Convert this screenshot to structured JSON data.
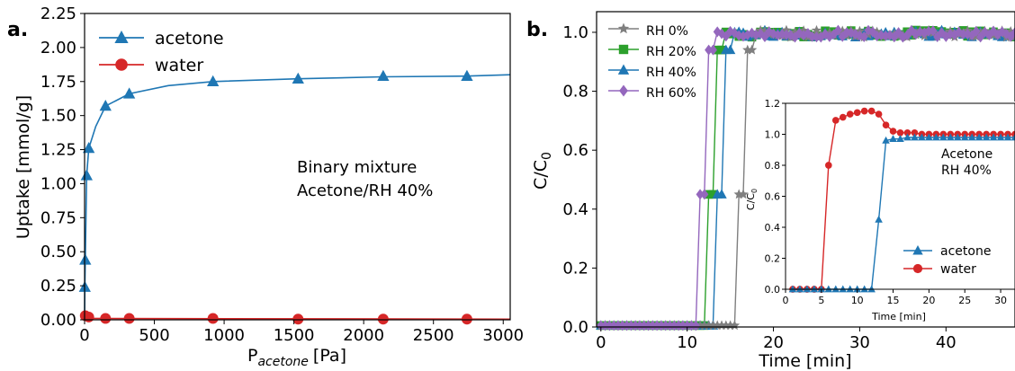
{
  "chart_data": [
    {
      "type": "line",
      "panel_label": "a.",
      "xlabel_main": "P",
      "xlabel_sub": "acetone",
      "xlabel_unit": "[Pa]",
      "ylabel": "Uptake [mmol/g]",
      "xlim": [
        0,
        3050
      ],
      "ylim": [
        0,
        2.25
      ],
      "xticks": [
        0,
        500,
        1000,
        1500,
        2000,
        2500,
        3000
      ],
      "yticks": [
        0.0,
        0.25,
        0.5,
        0.75,
        1.0,
        1.25,
        1.5,
        1.75,
        2.0,
        2.25
      ],
      "annotation": [
        "Binary mixture",
        "Acetone/RH 40%"
      ],
      "legend_position": "top-left",
      "grid": false,
      "series": [
        {
          "name": "acetone",
          "color": "#1f77b4",
          "marker": "triangle",
          "points": [
            [
              2,
              0.24
            ],
            [
              5,
              0.44
            ],
            [
              15,
              1.06
            ],
            [
              30,
              1.26
            ],
            [
              150,
              1.57
            ],
            [
              320,
              1.66
            ],
            [
              920,
              1.75
            ],
            [
              1530,
              1.77
            ],
            [
              2140,
              1.79
            ],
            [
              2740,
              1.79
            ]
          ],
          "fit_curve": [
            [
              0,
              0
            ],
            [
              2,
              0.24
            ],
            [
              5,
              0.44
            ],
            [
              15,
              1.06
            ],
            [
              30,
              1.26
            ],
            [
              80,
              1.42
            ],
            [
              150,
              1.57
            ],
            [
              320,
              1.66
            ],
            [
              600,
              1.72
            ],
            [
              920,
              1.75
            ],
            [
              1530,
              1.77
            ],
            [
              2140,
              1.785
            ],
            [
              2740,
              1.79
            ],
            [
              3050,
              1.8
            ]
          ]
        },
        {
          "name": "water",
          "color": "#d62728",
          "marker": "circle",
          "points": [
            [
              5,
              0.03
            ],
            [
              30,
              0.02
            ],
            [
              150,
              0.01
            ],
            [
              320,
              0.01
            ],
            [
              920,
              0.01
            ],
            [
              1530,
              0.005
            ],
            [
              2140,
              0.005
            ],
            [
              2740,
              0.005
            ]
          ]
        }
      ]
    },
    {
      "type": "line",
      "panel_label": "b.",
      "xlabel": "Time [min]",
      "ylabel_main": "C/C",
      "ylabel_sub": "0",
      "xlim": [
        -0.5,
        48
      ],
      "ylim": [
        0,
        1.07
      ],
      "xticks": [
        0,
        10,
        20,
        30,
        40
      ],
      "yticks": [
        "0.0",
        "0.2",
        "0.4",
        "0.6",
        "0.8",
        "1.0"
      ],
      "legend_position": "top-left",
      "grid": false,
      "series": [
        {
          "name": "RH 0%",
          "color": "#7f7f7f",
          "marker": "star",
          "breakthrough": 16.5,
          "jitter_seed": 1
        },
        {
          "name": "RH 20%",
          "color": "#2ca02c",
          "marker": "square",
          "breakthrough": 13.0,
          "jitter_seed": 2
        },
        {
          "name": "RH 40%",
          "color": "#1f77b4",
          "marker": "triangle",
          "breakthrough": 14.0,
          "jitter_seed": 3
        },
        {
          "name": "RH 60%",
          "color": "#9467bd",
          "marker": "diamond",
          "breakthrough": 12.0,
          "jitter_seed": 4
        }
      ],
      "inset": {
        "xlabel": "Time [min]",
        "ylabel_main": "C/C",
        "ylabel_sub": "0",
        "annotation": [
          "Acetone",
          "RH 40%"
        ],
        "xlim": [
          0,
          32
        ],
        "ylim": [
          0,
          1.2
        ],
        "xticks": [
          0,
          5,
          10,
          15,
          20,
          25,
          30
        ],
        "yticks": [
          "0.0",
          "0.2",
          "0.4",
          "0.6",
          "0.8",
          "1.0",
          "1.2"
        ],
        "legend_position": "bottom-right",
        "series": [
          {
            "name": "acetone",
            "color": "#1f77b4",
            "marker": "triangle",
            "points": [
              [
                1,
                0
              ],
              [
                2,
                0
              ],
              [
                3,
                0
              ],
              [
                4,
                0
              ],
              [
                5,
                0
              ],
              [
                6,
                0
              ],
              [
                7,
                0
              ],
              [
                8,
                0
              ],
              [
                9,
                0
              ],
              [
                10,
                0
              ],
              [
                11,
                0
              ],
              [
                12,
                0
              ],
              [
                13,
                0.45
              ],
              [
                14,
                0.96
              ],
              [
                15,
                0.97
              ],
              [
                16,
                0.97
              ],
              [
                17,
                0.98
              ],
              [
                18,
                0.98
              ],
              [
                19,
                0.98
              ],
              [
                20,
                0.98
              ],
              [
                21,
                0.98
              ],
              [
                22,
                0.98
              ],
              [
                23,
                0.98
              ],
              [
                24,
                0.98
              ],
              [
                25,
                0.98
              ],
              [
                26,
                0.98
              ],
              [
                27,
                0.98
              ],
              [
                28,
                0.98
              ],
              [
                29,
                0.98
              ],
              [
                30,
                0.98
              ],
              [
                31,
                0.98
              ],
              [
                32,
                0.98
              ]
            ]
          },
          {
            "name": "water",
            "color": "#d62728",
            "marker": "circle",
            "points": [
              [
                1,
                0
              ],
              [
                2,
                0
              ],
              [
                3,
                0
              ],
              [
                4,
                0
              ],
              [
                5,
                0
              ],
              [
                6,
                0.8
              ],
              [
                7,
                1.09
              ],
              [
                8,
                1.11
              ],
              [
                9,
                1.13
              ],
              [
                10,
                1.14
              ],
              [
                11,
                1.15
              ],
              [
                12,
                1.15
              ],
              [
                13,
                1.13
              ],
              [
                14,
                1.06
              ],
              [
                15,
                1.02
              ],
              [
                16,
                1.01
              ],
              [
                17,
                1.01
              ],
              [
                18,
                1.01
              ],
              [
                19,
                1.0
              ],
              [
                20,
                1.0
              ],
              [
                21,
                1.0
              ],
              [
                22,
                1.0
              ],
              [
                23,
                1.0
              ],
              [
                24,
                1.0
              ],
              [
                25,
                1.0
              ],
              [
                26,
                1.0
              ],
              [
                27,
                1.0
              ],
              [
                28,
                1.0
              ],
              [
                29,
                1.0
              ],
              [
                30,
                1.0
              ],
              [
                31,
                1.0
              ],
              [
                32,
                1.0
              ]
            ]
          }
        ]
      }
    }
  ]
}
